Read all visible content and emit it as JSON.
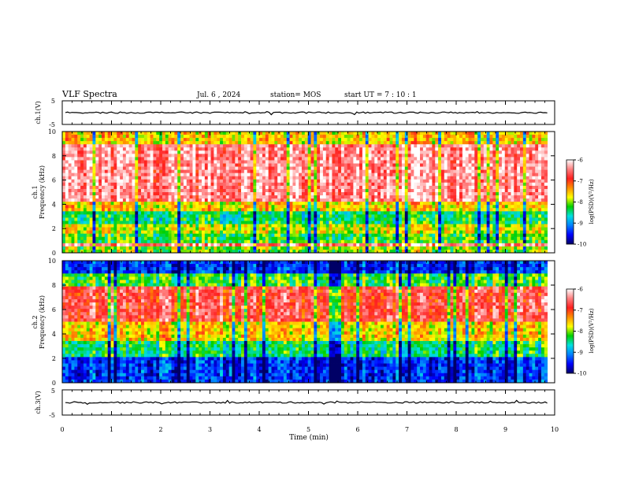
{
  "header": {
    "title": "VLF Spectra",
    "date": "Jul. 6 , 2024",
    "station": "station= MOS",
    "start": "start UT =  7 : 10 : 1"
  },
  "colors": {
    "colormap": [
      "#000066",
      "#0000ff",
      "#0080ff",
      "#00e0e0",
      "#00d000",
      "#ffff00",
      "#ff9000",
      "#ff2020",
      "#ff8080",
      "#ffffff"
    ]
  },
  "chart_data": [
    {
      "type": "line",
      "ylabel": "ch.1(V)",
      "ylim": [
        -5,
        5
      ],
      "yticks": [
        "5",
        "-5"
      ],
      "trace_level": 0,
      "x_range": [
        0,
        9.85
      ]
    },
    {
      "type": "heatmap",
      "ylabel_top": "ch.1",
      "ylabel": "Frequency (kHz)",
      "ylim": [
        0,
        10
      ],
      "yticks": [
        "0",
        "2",
        "4",
        "6",
        "8",
        "10"
      ],
      "x_range": [
        0,
        9.85
      ],
      "colorbar": {
        "label": "log(PSD)(V²/Hz)",
        "range": [
          -10,
          -6
        ],
        "ticks": [
          "-6",
          "-7",
          "-8",
          "-9",
          "-10"
        ]
      },
      "bands": [
        {
          "from": 0,
          "to": 0.5,
          "level": 0.5
        },
        {
          "from": 0.5,
          "to": 0.9,
          "level": 0.9
        },
        {
          "from": 0.9,
          "to": 1.7,
          "level": 0.45
        },
        {
          "from": 1.7,
          "to": 2.3,
          "level": 0.55
        },
        {
          "from": 2.3,
          "to": 3.5,
          "level": 0.4
        },
        {
          "from": 3.5,
          "to": 4.3,
          "level": 0.6
        },
        {
          "from": 4.3,
          "to": 9.0,
          "level": 0.9
        },
        {
          "from": 9.0,
          "to": 10,
          "level": 0.6
        }
      ]
    },
    {
      "type": "heatmap",
      "ylabel_top": "ch.2",
      "ylabel": "Frequency (kHz)",
      "ylim": [
        0,
        10
      ],
      "yticks": [
        "0",
        "2",
        "4",
        "6",
        "8",
        "10"
      ],
      "x_range": [
        0,
        9.85
      ],
      "colorbar": {
        "label": "log(PSD)(V²/Hz)",
        "range": [
          -10,
          -6
        ],
        "ticks": [
          "-6",
          "-7",
          "-8",
          "-9",
          "-10"
        ]
      },
      "bands": [
        {
          "from": 0,
          "to": 2.0,
          "level": 0.15
        },
        {
          "from": 2.0,
          "to": 3.5,
          "level": 0.4
        },
        {
          "from": 3.5,
          "to": 5.0,
          "level": 0.6
        },
        {
          "from": 5.0,
          "to": 8.0,
          "level": 0.82
        },
        {
          "from": 8.0,
          "to": 9.0,
          "level": 0.45
        },
        {
          "from": 9.0,
          "to": 10,
          "level": 0.15
        }
      ]
    },
    {
      "type": "line",
      "ylabel": "ch.3(V)",
      "ylim": [
        -5,
        5
      ],
      "yticks": [
        "5",
        "-5"
      ],
      "trace_level": 0,
      "x_range": [
        0,
        9.85
      ],
      "xlabel": "Time (min)",
      "xlim": [
        0,
        10
      ],
      "xticks": [
        "0",
        "1",
        "2",
        "3",
        "4",
        "5",
        "6",
        "7",
        "8",
        "9",
        "10"
      ]
    }
  ]
}
